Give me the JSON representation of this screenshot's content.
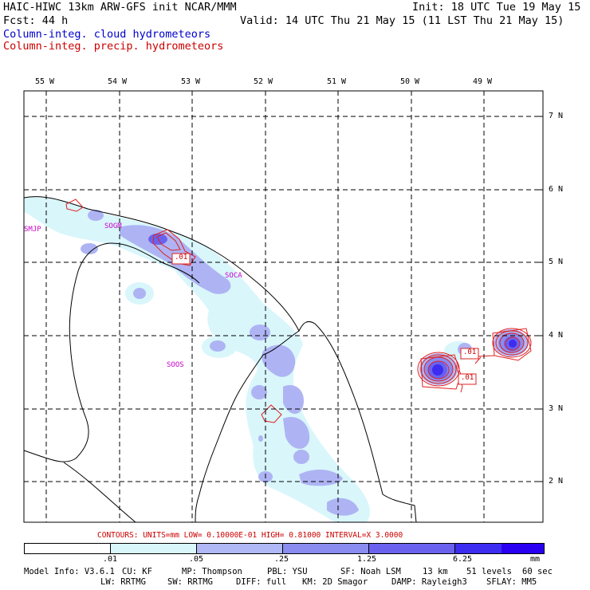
{
  "header": {
    "title": "HAIC-HIWC 13km ARW-GFS init   NCAR/MMM",
    "init": "Init: 18 UTC Tue 19 May 15",
    "fcst": "Fcst:   44 h",
    "valid": "Valid: 14 UTC Thu 21 May 15 (11 LST Thu 21 May 15)",
    "field_cloud": "Column-integ. cloud hydrometeors",
    "field_precip": "Column-integ. precip. hydrometeors"
  },
  "map": {
    "lon_labels": [
      "55 W",
      "54 W",
      "53 W",
      "52 W",
      "51 W",
      "50 W",
      "49 W"
    ],
    "lat_labels": [
      "7 N",
      "6 N",
      "5 N",
      "4 N",
      "3 N",
      "2 N"
    ],
    "stations": [
      "SMJP",
      "SOGM",
      "SOCA",
      "SOOS"
    ],
    "contour_labels": [
      ".01",
      ".01",
      ".01"
    ]
  },
  "contours_line": "CONTOURS:  UNITS=mm  LOW= 0.10000E-01  HIGH= 0.81000     INTERVAL=X  3.0000",
  "colorbar": {
    "ticks": [
      ".01",
      ".05",
      ".25",
      "1.25",
      "6.25"
    ],
    "units": "mm",
    "colors": [
      "#ffffff",
      "#d9f6fb",
      "#b0b8f5",
      "#8a8cf0",
      "#6a62ee",
      "#3c2df0",
      "#2a00f2"
    ]
  },
  "footer": {
    "line1": [
      "Model Info: V3.6.1",
      "CU: KF",
      "MP: Thompson",
      "PBL: YSU",
      "SF: Noah LSM",
      "13 km",
      "51 levels",
      "60 sec"
    ],
    "line2": [
      "LW: RRTMG",
      "SW: RRTMG",
      "DIFF: full",
      "KM: 2D Smagor",
      "DAMP: Rayleigh3",
      "SFLAY: MM5"
    ]
  }
}
